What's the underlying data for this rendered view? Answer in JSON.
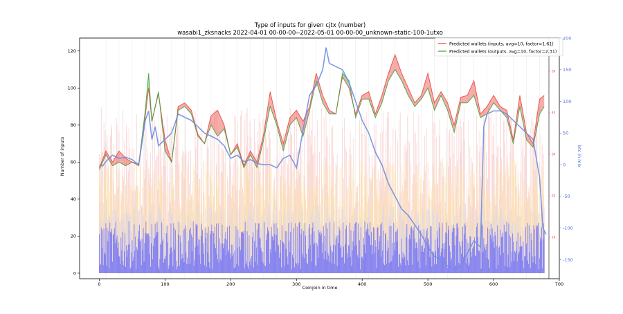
{
  "chart_data": {
    "type": "line",
    "title": "Type of inputs for given cjtx (number)",
    "subtitle": "wasabi1_zksnacks 2022-04-01 00-00-00--2022-05-01 00-00-00_unknown-static-100-1utxo",
    "xlabel": "Coinjoin in time",
    "ylabel": "Number of inputs",
    "y2label": "btc in mix",
    "xlim": [
      -30,
      700
    ],
    "ylim": [
      -3,
      127
    ],
    "y2lim": [
      -180,
      200
    ],
    "y3lim": [
      0,
      58
    ],
    "xticks": [
      0,
      100,
      200,
      300,
      400,
      500,
      600,
      700
    ],
    "yticks": [
      0,
      20,
      40,
      60,
      80,
      100,
      120
    ],
    "y2ticks": [
      -150,
      -100,
      -50,
      0,
      50,
      100,
      150,
      200
    ],
    "y3ticks": [
      10,
      20,
      30,
      40,
      50
    ],
    "grid": "vertical lines only",
    "legend_position": "top-right",
    "legend": [
      {
        "name": "Predicted wallets (inputs, avg=10, factor=1.61)",
        "color": "#e8433b"
      },
      {
        "name": "Predicted wallets (outputs, avg=10, factor=2.31)",
        "color": "#3aa03a"
      }
    ],
    "colors": {
      "inputs": "#e8433b",
      "outputs": "#3aa03a",
      "btc": "#6f8ee0",
      "bars_blue": "#6f6ff5",
      "bars_light_blue": "#cfd3fb",
      "bars_yellow": "#fbe3a0",
      "bars_pink": "#f5b8b8"
    },
    "series": [
      {
        "name": "Predicted wallets (inputs, avg=10, factor=1.61)",
        "x": [
          0,
          10,
          20,
          30,
          40,
          50,
          60,
          70,
          75,
          80,
          90,
          100,
          110,
          120,
          130,
          140,
          150,
          160,
          170,
          180,
          190,
          200,
          210,
          220,
          230,
          240,
          250,
          260,
          270,
          280,
          290,
          300,
          310,
          320,
          330,
          340,
          350,
          360,
          370,
          380,
          390,
          400,
          410,
          420,
          430,
          440,
          450,
          460,
          470,
          480,
          490,
          500,
          510,
          520,
          530,
          540,
          550,
          560,
          570,
          580,
          590,
          600,
          610,
          620,
          630,
          640,
          650,
          660,
          670,
          677
        ],
        "y": [
          57,
          66,
          60,
          66,
          62,
          60,
          58,
          85,
          100,
          82,
          97,
          72,
          60,
          90,
          92,
          88,
          75,
          70,
          85,
          88,
          80,
          64,
          70,
          58,
          66,
          60,
          75,
          98,
          82,
          70,
          84,
          88,
          82,
          90,
          108,
          96,
          88,
          86,
          106,
          100,
          86,
          96,
          98,
          86,
          96,
          108,
          118,
          108,
          100,
          92,
          96,
          108,
          92,
          98,
          92,
          80,
          95,
          96,
          104,
          86,
          90,
          96,
          90,
          88,
          72,
          96,
          76,
          70,
          94,
          96
        ]
      },
      {
        "name": "Predicted wallets (outputs, avg=10, factor=2.31)",
        "x": [
          0,
          10,
          20,
          30,
          40,
          50,
          60,
          70,
          75,
          80,
          90,
          100,
          110,
          120,
          130,
          140,
          150,
          160,
          170,
          180,
          190,
          200,
          210,
          220,
          230,
          240,
          250,
          260,
          270,
          280,
          290,
          300,
          310,
          320,
          330,
          340,
          350,
          360,
          370,
          380,
          390,
          400,
          410,
          420,
          430,
          440,
          450,
          460,
          470,
          480,
          490,
          500,
          510,
          520,
          530,
          540,
          550,
          560,
          570,
          580,
          590,
          600,
          610,
          620,
          630,
          640,
          650,
          660,
          670,
          677
        ],
        "y": [
          56,
          64,
          58,
          60,
          58,
          60,
          59,
          88,
          108,
          82,
          98,
          66,
          60,
          88,
          90,
          86,
          74,
          70,
          80,
          74,
          78,
          64,
          68,
          57,
          64,
          57,
          72,
          90,
          80,
          66,
          80,
          84,
          74,
          88,
          104,
          92,
          86,
          86,
          108,
          104,
          84,
          94,
          94,
          84,
          92,
          104,
          110,
          104,
          96,
          90,
          94,
          100,
          88,
          96,
          88,
          76,
          92,
          92,
          96,
          84,
          86,
          92,
          88,
          84,
          70,
          90,
          72,
          68,
          86,
          90
        ]
      },
      {
        "name": "btc in mix",
        "axis": "right",
        "x": [
          0,
          5,
          10,
          20,
          30,
          40,
          50,
          60,
          70,
          75,
          80,
          85,
          90,
          100,
          110,
          120,
          130,
          140,
          150,
          160,
          170,
          180,
          190,
          200,
          210,
          220,
          230,
          240,
          250,
          260,
          270,
          280,
          290,
          300,
          310,
          320,
          330,
          340,
          345,
          350,
          360,
          370,
          380,
          390,
          400,
          410,
          420,
          430,
          440,
          450,
          460,
          470,
          480,
          490,
          500,
          510,
          520,
          530,
          540,
          550,
          560,
          570,
          580,
          585,
          590,
          600,
          610,
          620,
          630,
          640,
          650,
          660,
          665,
          670,
          675,
          680
        ],
        "y": [
          0,
          -2,
          5,
          15,
          10,
          12,
          8,
          0,
          70,
          85,
          40,
          60,
          30,
          40,
          50,
          80,
          75,
          70,
          60,
          50,
          45,
          40,
          30,
          10,
          15,
          5,
          8,
          2,
          0,
          0,
          -5,
          10,
          15,
          -5,
          55,
          110,
          125,
          150,
          185,
          160,
          155,
          150,
          130,
          100,
          70,
          50,
          20,
          0,
          -30,
          -50,
          -70,
          -80,
          -95,
          -110,
          -130,
          -145,
          -150,
          -160,
          -165,
          -160,
          -140,
          -120,
          -130,
          60,
          80,
          85,
          85,
          80,
          70,
          60,
          50,
          40,
          10,
          -20,
          -100,
          -110
        ]
      }
    ],
    "bars": [
      {
        "name": "blue",
        "color": "#6f6ff5",
        "range": [
          2,
          28
        ]
      },
      {
        "name": "light_blue",
        "color": "#cfd3fb",
        "range": [
          10,
          38
        ]
      },
      {
        "name": "yellow",
        "color": "#fbe3a0",
        "range": [
          25,
          62
        ]
      },
      {
        "name": "pink",
        "color": "#f5b8b8",
        "range": [
          15,
          90
        ]
      }
    ]
  }
}
